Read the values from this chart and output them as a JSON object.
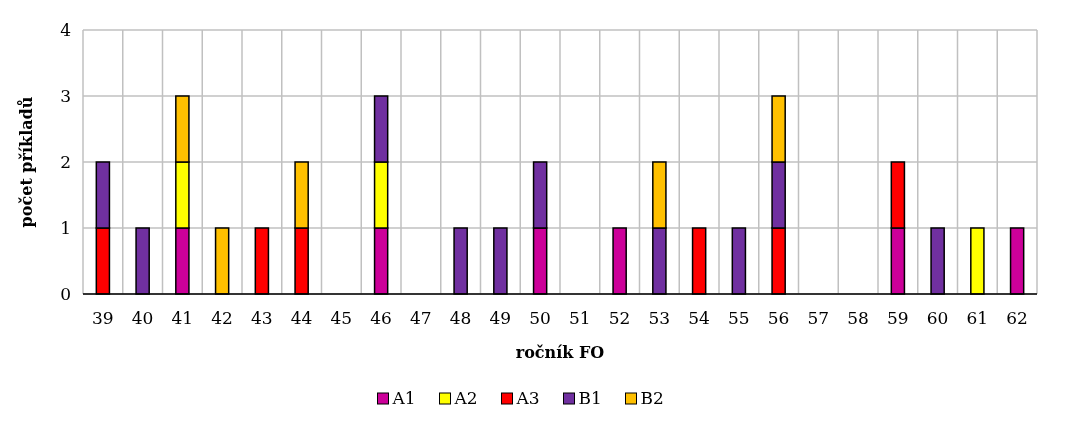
{
  "chart_data": {
    "type": "bar",
    "stacked": true,
    "xlabel": "ročník FO",
    "ylabel": "počet příkladů",
    "categories": [
      "39",
      "40",
      "41",
      "42",
      "43",
      "44",
      "45",
      "46",
      "47",
      "48",
      "49",
      "50",
      "51",
      "52",
      "53",
      "54",
      "55",
      "56",
      "57",
      "58",
      "59",
      "60",
      "61",
      "62"
    ],
    "series": [
      {
        "name": "A1",
        "color": "#cc0099",
        "values": [
          0,
          0,
          1,
          0,
          0,
          0,
          0,
          1,
          0,
          0,
          0,
          1,
          0,
          1,
          0,
          0,
          0,
          0,
          0,
          0,
          1,
          0,
          0,
          1
        ]
      },
      {
        "name": "A2",
        "color": "#ffff00",
        "values": [
          0,
          0,
          1,
          0,
          0,
          0,
          0,
          1,
          0,
          0,
          0,
          0,
          0,
          0,
          0,
          0,
          0,
          0,
          0,
          0,
          0,
          0,
          1,
          0
        ]
      },
      {
        "name": "A3",
        "color": "#ff0000",
        "values": [
          1,
          0,
          0,
          0,
          1,
          1,
          0,
          0,
          0,
          0,
          0,
          0,
          0,
          0,
          0,
          1,
          0,
          1,
          0,
          0,
          1,
          0,
          0,
          0
        ]
      },
      {
        "name": "B1",
        "color": "#7030a0",
        "values": [
          1,
          1,
          0,
          0,
          0,
          0,
          0,
          1,
          0,
          1,
          1,
          1,
          0,
          0,
          1,
          0,
          1,
          1,
          0,
          0,
          0,
          1,
          0,
          0
        ]
      },
      {
        "name": "B2",
        "color": "#ffc000",
        "values": [
          0,
          0,
          1,
          1,
          0,
          1,
          0,
          0,
          0,
          0,
          0,
          0,
          0,
          0,
          1,
          0,
          0,
          1,
          0,
          0,
          0,
          0,
          0,
          0
        ]
      }
    ],
    "ylim": [
      0,
      4
    ],
    "yticks": [
      0,
      1,
      2,
      3,
      4
    ],
    "grid": true,
    "legend": "bottom"
  }
}
